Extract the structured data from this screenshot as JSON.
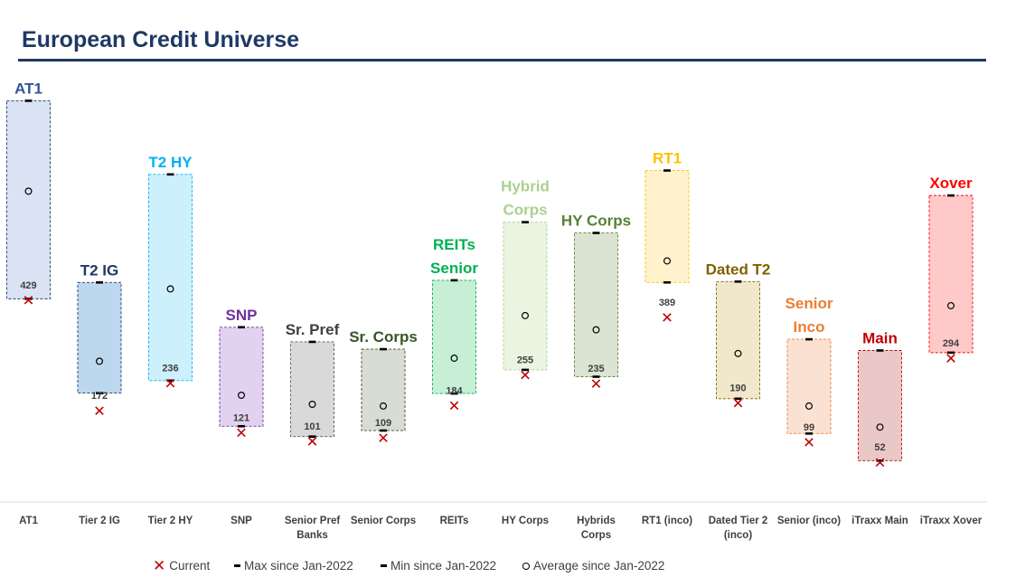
{
  "title": "European Credit Universe",
  "legend": {
    "current": "Current",
    "max": "Max since Jan-2022",
    "min": "Min since Jan-2022",
    "average": "Average since Jan-2022"
  },
  "chart_data": {
    "type": "range",
    "title": "European Credit Universe",
    "xlabel": "",
    "ylabel": "",
    "ylim": [
      0,
      1000
    ],
    "grid": false,
    "legend_position": "bottom",
    "categories": [
      "AT1",
      "Tier 2 IG",
      "Tier 2 HY",
      "SNP",
      "Senior Pref Banks",
      "Senior Corps",
      "REITs",
      "HY Corps",
      "Hybrids Corps",
      "RT1 (inco)",
      "Dated Tier 2 (inco)",
      "Senior (inco)",
      "iTraxx Main",
      "iTraxx Xover"
    ],
    "series": [
      {
        "name": "Current",
        "values": [
          429,
          172,
          236,
          121,
          101,
          109,
          184,
          255,
          235,
          389,
          190,
          99,
          52,
          294
        ]
      },
      {
        "name": "Max since Jan-2022",
        "values": [
          892,
          470,
          721,
          366,
          332,
          315,
          475,
          610,
          585,
          730,
          472,
          338,
          312,
          672
        ]
      },
      {
        "name": "Min since Jan-2022",
        "values": [
          432,
          213,
          242,
          136,
          112,
          126,
          212,
          267,
          251,
          470,
          200,
          119,
          56,
          307
        ]
      },
      {
        "name": "Average since Jan-2022",
        "values": [
          682,
          287,
          455,
          208,
          187,
          183,
          294,
          393,
          360,
          520,
          305,
          183,
          134,
          416
        ]
      }
    ],
    "group_labels": [
      {
        "lines": [
          "AT1"
        ],
        "color": "#2f5597"
      },
      {
        "lines": [
          "T2 IG"
        ],
        "color": "#1f3864"
      },
      {
        "lines": [
          "T2 HY"
        ],
        "color": "#00b0f0"
      },
      {
        "lines": [
          "SNP"
        ],
        "color": "#7030a0"
      },
      {
        "lines": [
          "Sr. Pref"
        ],
        "color": "#404040"
      },
      {
        "lines": [
          "Sr. Corps"
        ],
        "color": "#375623"
      },
      {
        "lines": [
          "REITs",
          "Senior"
        ],
        "color": "#00b050"
      },
      {
        "lines": [
          "Hybrid",
          "Corps"
        ],
        "color": "#a9d18e"
      },
      {
        "lines": [
          "HY Corps"
        ],
        "color": "#548235"
      },
      {
        "lines": [
          "RT1"
        ],
        "color": "#ffc000"
      },
      {
        "lines": [
          "Dated T2"
        ],
        "color": "#7f6000"
      },
      {
        "lines": [
          "Senior",
          "Inco"
        ],
        "color": "#ed7d31"
      },
      {
        "lines": [
          "Main"
        ],
        "color": "#c00000"
      },
      {
        "lines": [
          "Xover"
        ],
        "color": "#ff0000"
      }
    ],
    "box_colors": [
      {
        "fill": "#dae3f3",
        "stroke": "#1f3864"
      },
      {
        "fill": "#bdd7ee",
        "stroke": "#1f3864"
      },
      {
        "fill": "#ccf0fc",
        "stroke": "#00b0f0"
      },
      {
        "fill": "#e2d1ef",
        "stroke": "#7030a0"
      },
      {
        "fill": "#d9d9d9",
        "stroke": "#595959"
      },
      {
        "fill": "#d8dcd3",
        "stroke": "#375623"
      },
      {
        "fill": "#c6efd6",
        "stroke": "#00b050"
      },
      {
        "fill": "#eaf5e1",
        "stroke": "#a9d18e"
      },
      {
        "fill": "#dbe3d3",
        "stroke": "#548235"
      },
      {
        "fill": "#fff2cc",
        "stroke": "#ffc000"
      },
      {
        "fill": "#f1e8cc",
        "stroke": "#7f6000"
      },
      {
        "fill": "#fbe1d1",
        "stroke": "#ed7d31"
      },
      {
        "fill": "#ebc8c8",
        "stroke": "#c00000"
      },
      {
        "fill": "#ffc9c9",
        "stroke": "#ff0000"
      }
    ],
    "category_label_lines": [
      [
        "AT1"
      ],
      [
        "Tier 2 IG"
      ],
      [
        "Tier 2 HY"
      ],
      [
        "SNP"
      ],
      [
        "Senior Pref",
        "Banks"
      ],
      [
        "Senior Corps"
      ],
      [
        "REITs"
      ],
      [
        "HY Corps"
      ],
      [
        "Hybrids",
        "Corps"
      ],
      [
        "RT1 (inco)"
      ],
      [
        "Dated Tier 2",
        "(inco)"
      ],
      [
        "Senior (inco)"
      ],
      [
        "iTraxx Main"
      ],
      [
        "iTraxx Xover"
      ]
    ],
    "current_marker_color": "#c00000"
  }
}
